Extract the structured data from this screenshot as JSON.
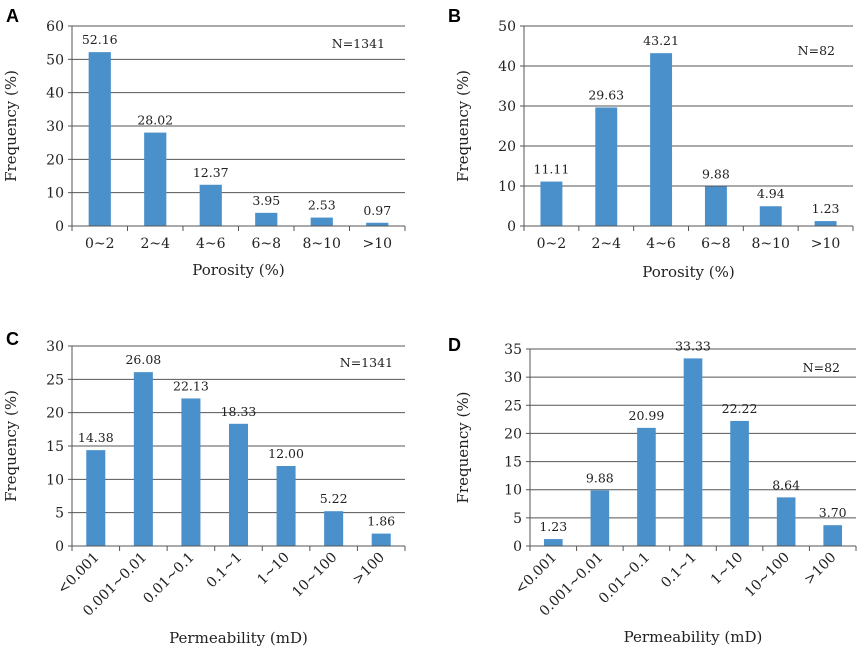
{
  "chart_data": [
    {
      "panel": "A",
      "type": "bar",
      "categories": [
        "0~2",
        "2~4",
        "4~6",
        "6~8",
        "8~10",
        ">10"
      ],
      "values": [
        52.16,
        28.02,
        12.37,
        3.95,
        2.53,
        0.97
      ],
      "value_labels": [
        "52.16",
        "28.02",
        "12.37",
        "3.95",
        "2.53",
        "0.97"
      ],
      "xlabel": "Porosity (%)",
      "ylabel": "Frequency (%)",
      "ylim": [
        0,
        60
      ],
      "yticks": [
        0,
        10,
        20,
        30,
        40,
        50,
        60
      ],
      "annotation": "N=1341",
      "grid": true,
      "rotated_labels": false
    },
    {
      "panel": "B",
      "type": "bar",
      "categories": [
        "0~2",
        "2~4",
        "4~6",
        "6~8",
        "8~10",
        ">10"
      ],
      "values": [
        11.11,
        29.63,
        43.21,
        9.88,
        4.94,
        1.23
      ],
      "value_labels": [
        "11.11",
        "29.63",
        "43.21",
        "9.88",
        "4.94",
        "1.23"
      ],
      "xlabel": "Porosity (%)",
      "ylabel": "Frequency (%)",
      "ylim": [
        0,
        50
      ],
      "yticks": [
        0,
        10,
        20,
        30,
        40,
        50
      ],
      "annotation": "N=82",
      "grid": true,
      "rotated_labels": false
    },
    {
      "panel": "C",
      "type": "bar",
      "categories": [
        "<0.001",
        "0.001~0.01",
        "0.01~0.1",
        "0.1~1",
        "1~10",
        "10~100",
        ">100"
      ],
      "values": [
        14.38,
        26.08,
        22.13,
        18.33,
        12.0,
        5.22,
        1.86
      ],
      "value_labels": [
        "14.38",
        "26.08",
        "22.13",
        "18.33",
        "12.00",
        "5.22",
        "1.86"
      ],
      "xlabel": "Permeability (mD)",
      "ylabel": "Frequency (%)",
      "ylim": [
        0,
        30
      ],
      "yticks": [
        0,
        5,
        10,
        15,
        20,
        25,
        30
      ],
      "annotation": "N=1341",
      "grid": true,
      "rotated_labels": true
    },
    {
      "panel": "D",
      "type": "bar",
      "categories": [
        "<0.001",
        "0.001~0.01",
        "0.01~0.1",
        "0.1~1",
        "1~10",
        "10~100",
        ">100"
      ],
      "values": [
        1.23,
        9.88,
        20.99,
        33.33,
        22.22,
        8.64,
        3.7
      ],
      "value_labels": [
        "1.23",
        "9.88",
        "20.99",
        "33.33",
        "22.22",
        "8.64",
        "3.70"
      ],
      "xlabel": "Permeability (mD)",
      "ylabel": "Frequency (%)",
      "ylim": [
        0,
        35
      ],
      "yticks": [
        0,
        5,
        10,
        15,
        20,
        25,
        30,
        35
      ],
      "annotation": "N=82",
      "grid": true,
      "rotated_labels": true
    }
  ],
  "colors": {
    "bar": "#4a91cc",
    "grid": "#555555"
  }
}
